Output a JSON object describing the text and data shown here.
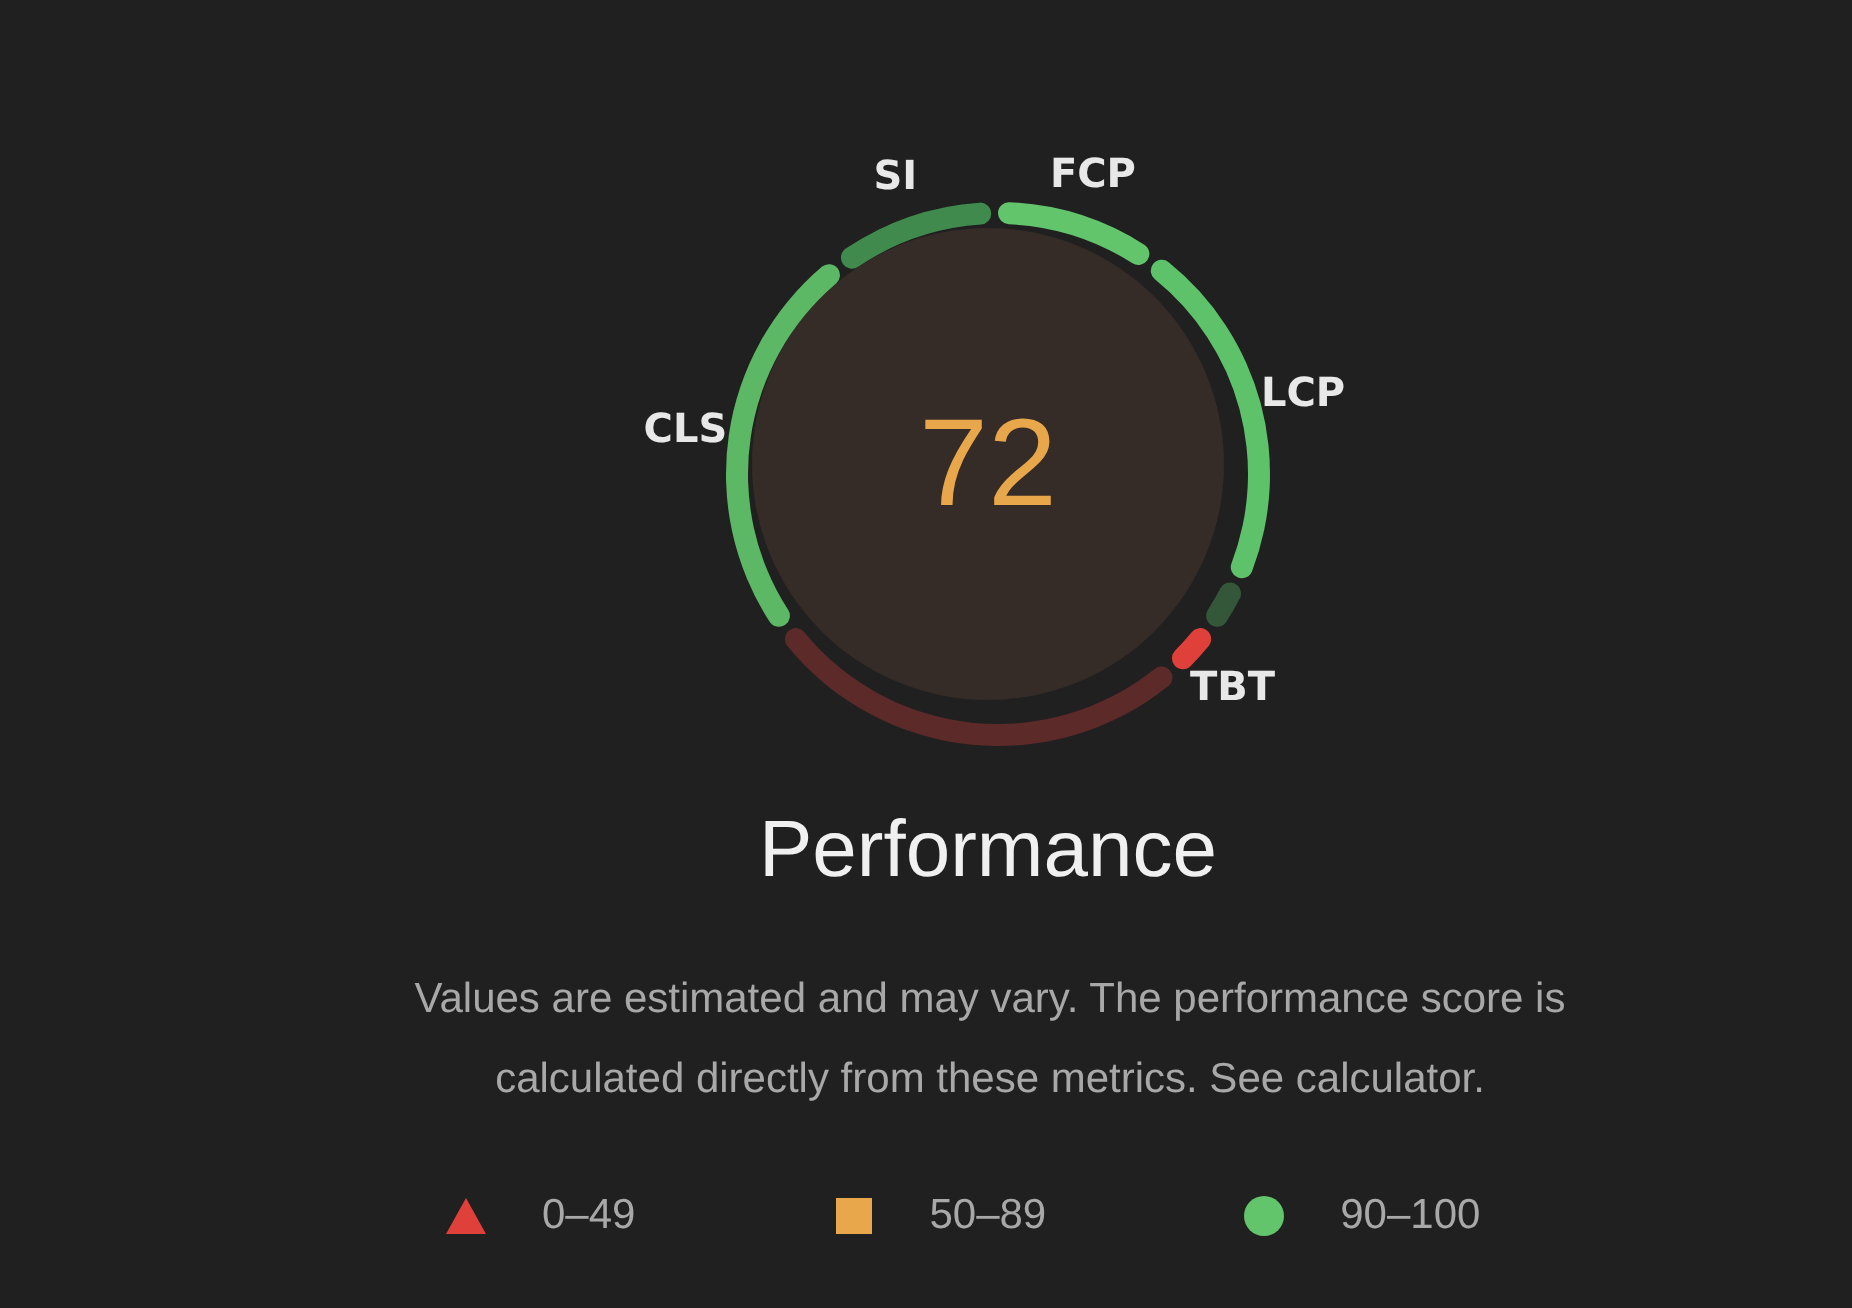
{
  "chart_data": {
    "type": "donut",
    "title": "Performance",
    "categories": [
      "FCP",
      "LCP",
      null,
      "TBT",
      null,
      "CLS",
      "SI"
    ],
    "values": [
      10,
      22,
      3,
      3,
      27,
      25,
      10
    ],
    "colors": [
      "#62c56c",
      "#5ec26a",
      "#34573a",
      "#e0403a",
      "#5c2a28",
      "#5cb865",
      "#3f8a4c"
    ],
    "annotations": [
      "72",
      "Values are estimated and may vary. The performance score is calculated directly from these metrics. See calculator.",
      "0–49",
      "50–89",
      "90–100"
    ]
  }
}
